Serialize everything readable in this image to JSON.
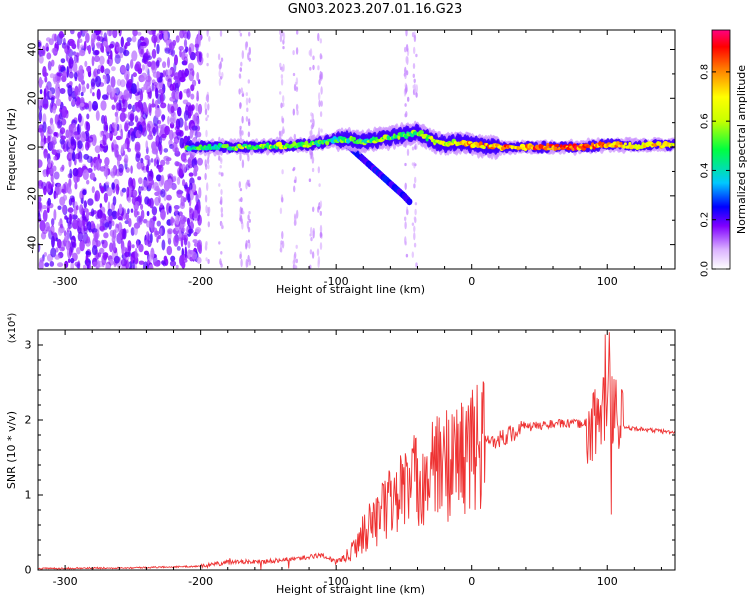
{
  "title": "GN03.2023.207.01.16.G23",
  "colors": {
    "snr_line": "#ee3333",
    "axis": "#000000"
  },
  "chart_data": [
    {
      "type": "heatmap",
      "xlabel": "Height of straight line (km)",
      "ylabel": "Frequency (Hz)",
      "xlim": [
        -320,
        150
      ],
      "ylim": [
        -50,
        48
      ],
      "xticks": [
        -300,
        -200,
        -100,
        0,
        100
      ],
      "yticks": [
        -40,
        -20,
        0,
        20,
        40
      ],
      "colorbar": {
        "label": "Normalized spectral amplitude",
        "ticks": [
          0.0,
          0.2,
          0.4,
          0.6,
          0.8
        ],
        "range": [
          0,
          0.97
        ]
      },
      "ridge": {
        "x": [
          -205,
          -180,
          -160,
          -140,
          -120,
          -110,
          -100,
          -90,
          -80,
          -70,
          -60,
          -50,
          -40,
          -30,
          -20,
          -10,
          0,
          20,
          50,
          80,
          100,
          120,
          150
        ],
        "y": [
          0,
          0,
          0,
          0.5,
          1,
          2,
          3,
          3,
          2,
          3,
          4,
          5,
          6,
          3,
          1,
          2,
          1,
          0,
          0,
          0,
          1,
          0.5,
          1
        ],
        "amplitude": [
          0.45,
          0.5,
          0.55,
          0.6,
          0.55,
          0.5,
          0.45,
          0.5,
          0.5,
          0.55,
          0.55,
          0.5,
          0.5,
          0.6,
          0.65,
          0.7,
          0.75,
          0.8,
          0.85,
          0.85,
          0.8,
          0.75,
          0.7
        ]
      },
      "secondary_trace": {
        "x": [
          -100,
          -90,
          -80,
          -70,
          -60,
          -50,
          -45
        ],
        "y": [
          3,
          0,
          -5,
          -10,
          -15,
          -20,
          -23
        ]
      }
    },
    {
      "type": "line",
      "xlabel": "Height of straight line (km)",
      "ylabel": "SNR (10 * v/v)",
      "scale_label": "(x10⁴)",
      "xlim": [
        -320,
        150
      ],
      "ylim": [
        0,
        3.2
      ],
      "xticks": [
        -300,
        -200,
        -100,
        0,
        100
      ],
      "yticks": [
        0,
        1,
        2,
        3
      ],
      "envelope": {
        "x": [
          -320,
          -250,
          -200,
          -180,
          -150,
          -130,
          -110,
          -100,
          -90,
          -80,
          -70,
          -60,
          -50,
          -40,
          -30,
          -20,
          -10,
          0,
          10,
          20,
          40,
          60,
          80,
          95,
          100,
          105,
          110,
          130,
          150
        ],
        "y": [
          0.02,
          0.03,
          0.05,
          0.1,
          0.12,
          0.15,
          0.2,
          0.1,
          0.2,
          0.5,
          0.7,
          0.9,
          1.1,
          1.2,
          1.3,
          1.4,
          1.5,
          1.6,
          1.7,
          1.75,
          1.9,
          1.95,
          1.95,
          2.0,
          2.2,
          2.1,
          1.9,
          1.87,
          1.83
        ]
      }
    }
  ]
}
